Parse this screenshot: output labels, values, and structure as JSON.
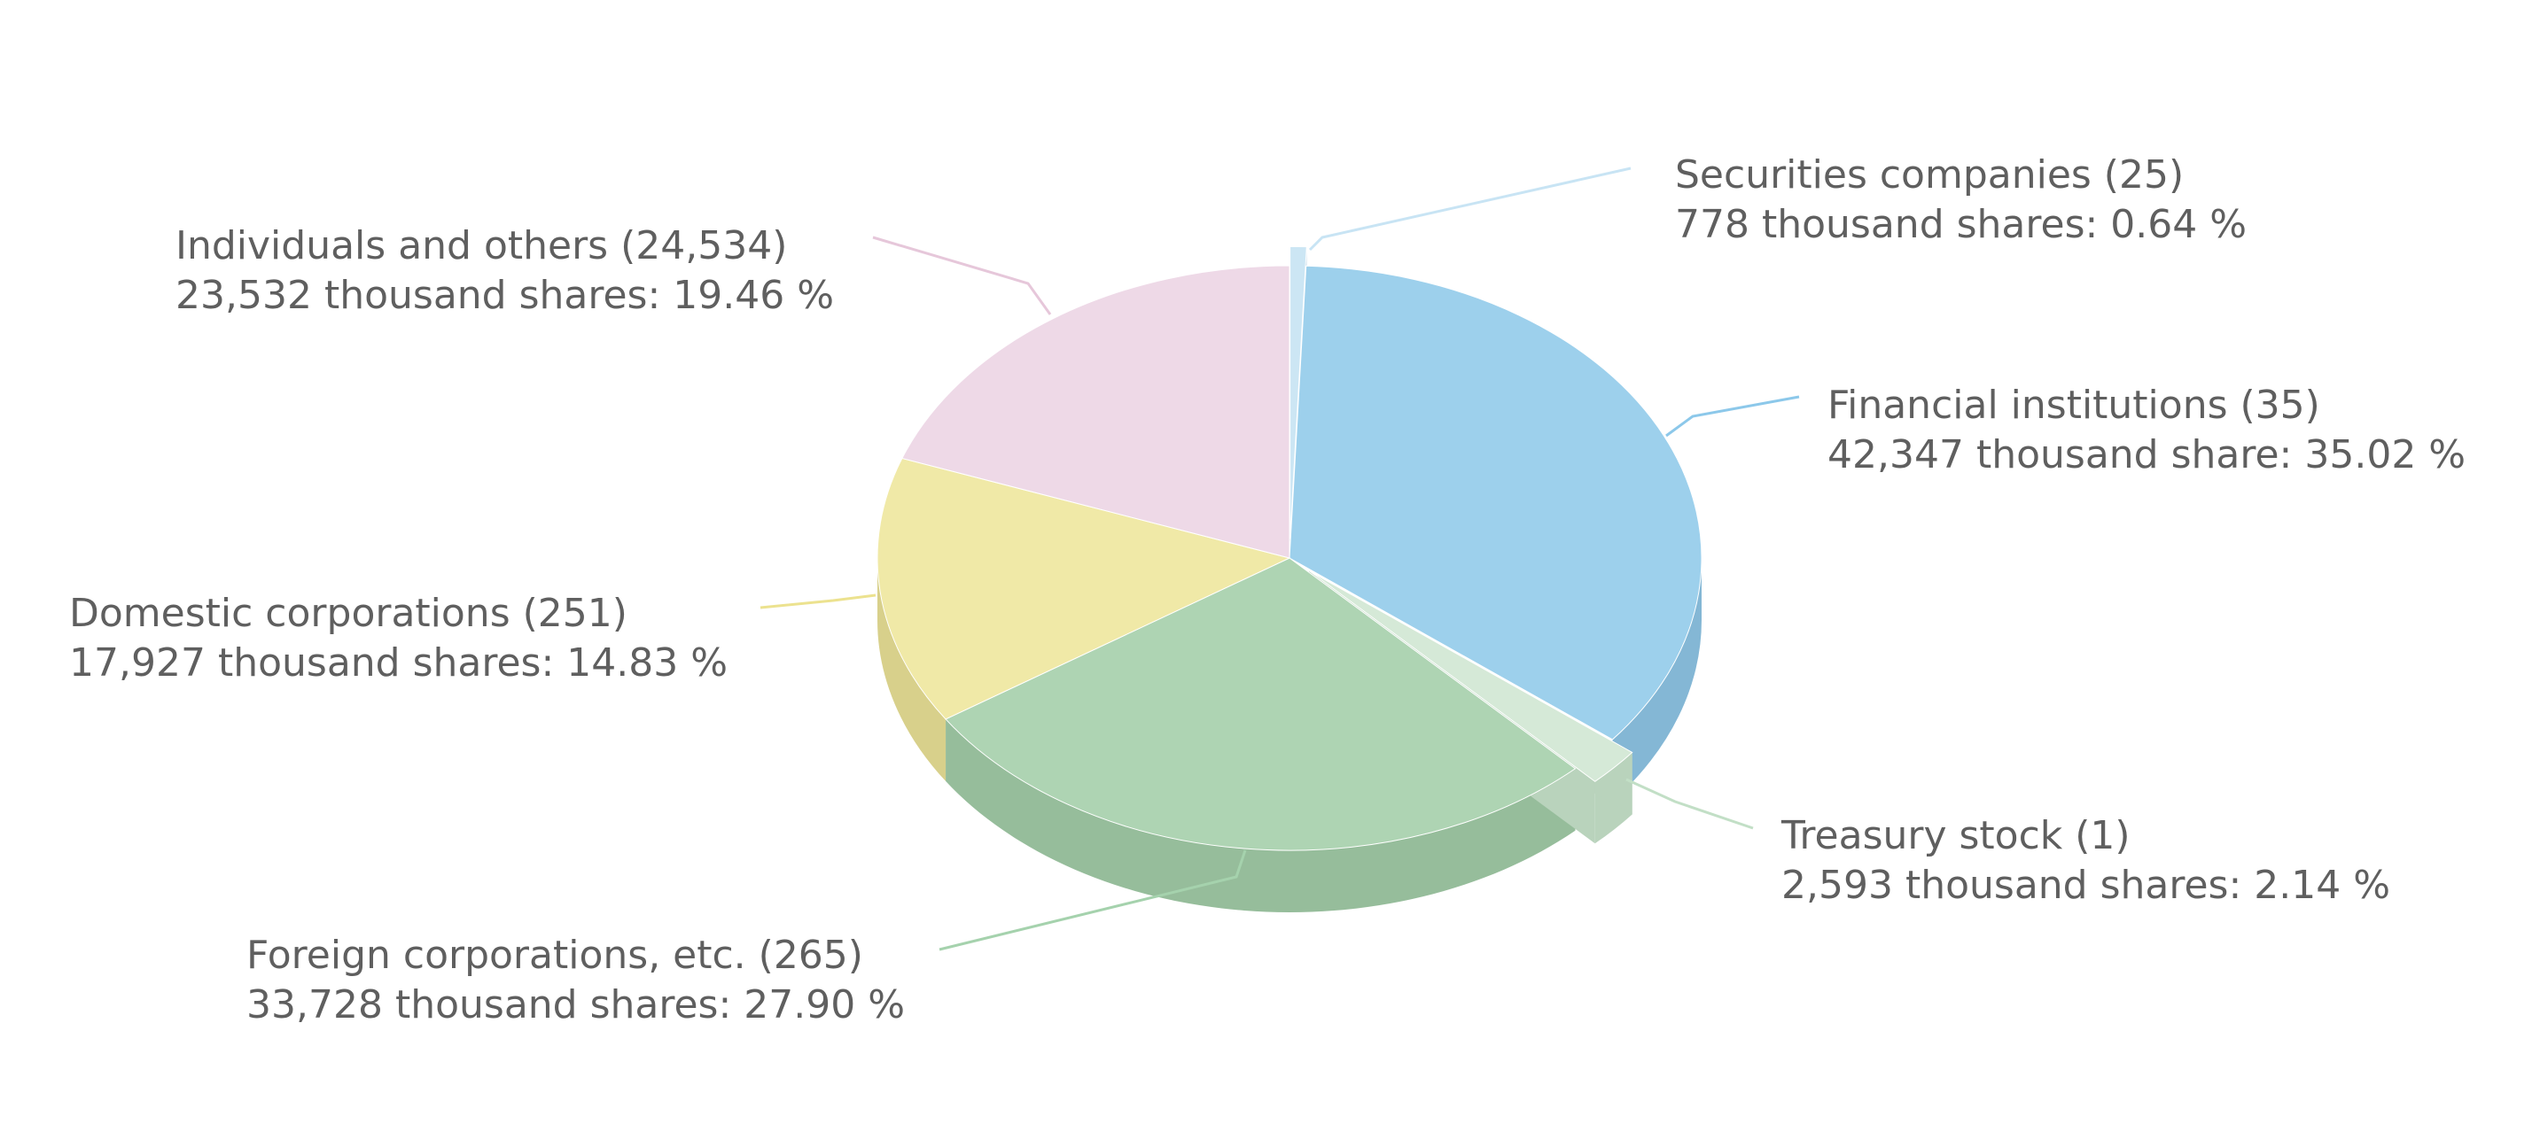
{
  "chart_data": {
    "type": "pie",
    "style": "3d-exploded",
    "title": "",
    "slices": [
      {
        "category": "Securities companies",
        "holders": "25",
        "shares_thousand": 778,
        "percent": 0.64,
        "line1": "Securities companies (25)",
        "line2": "778 thousand shares: 0.64 %",
        "color": "#cce6f4",
        "side_color": "#a9cbe0"
      },
      {
        "category": "Financial institutions",
        "holders": "35",
        "shares_thousand": 42347,
        "percent": 35.02,
        "line1": "Financial institutions (35)",
        "line2": "42,347 thousand share: 35.02 %",
        "color": "#9dd0ec",
        "side_color": "#84b7d5"
      },
      {
        "category": "Treasury stock",
        "holders": "1",
        "shares_thousand": 2593,
        "percent": 2.14,
        "line1": "Treasury stock (1)",
        "line2": "2,593 thousand shares: 2.14 %",
        "color": "#d5e9d7",
        "side_color": "#b9d3bc"
      },
      {
        "category": "Foreign corporations, etc.",
        "holders": "265",
        "shares_thousand": 33728,
        "percent": 27.9,
        "line1": "Foreign corporations, etc. (265)",
        "line2": "33,728 thousand shares: 27.90 %",
        "color": "#aed4b3",
        "side_color": "#96bd9b"
      },
      {
        "category": "Domestic corporations",
        "holders": "251",
        "shares_thousand": 17927,
        "percent": 14.83,
        "line1": "Domestic corporations (251)",
        "line2": "17,927 thousand shares: 14.83 %",
        "color": "#f0e9a7",
        "side_color": "#d8d08b"
      },
      {
        "category": "Individuals and others",
        "holders": "24,534",
        "shares_thousand": 23532,
        "percent": 19.46,
        "line1": "Individuals and others (24,534)",
        "line2": "23,532 thousand shares: 19.46 %",
        "color": "#eed9e7",
        "side_color": "#d9c1d1"
      }
    ],
    "exploded": [
      "Securities companies",
      "Treasury stock"
    ],
    "legend": "none",
    "label_color": "#5f5f5f"
  }
}
